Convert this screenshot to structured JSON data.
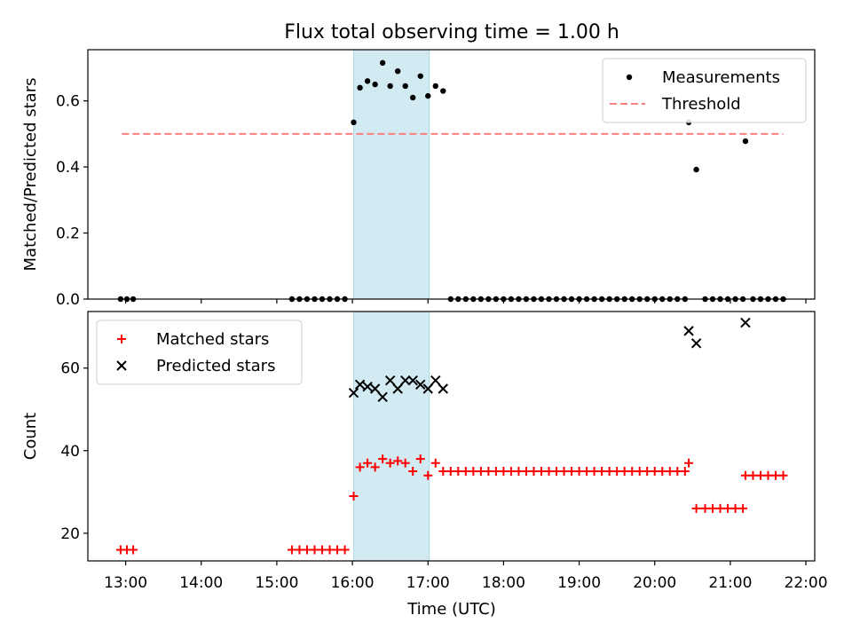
{
  "title": "Flux total observing time = 1.00 h",
  "xlabel": "Time (UTC)",
  "colors": {
    "matched": "#ff0000",
    "predicted": "#000000",
    "threshold": "#ff7f7f",
    "measurement": "#000000",
    "highlight": "#add8e6"
  },
  "chart_data": [
    {
      "type": "scatter",
      "ylabel": "Matched/Predicted stars",
      "xlim": [
        "12:30",
        "22:07"
      ],
      "ylim": [
        0,
        0.755
      ],
      "yticks": [
        0.0,
        0.2,
        0.4,
        0.6
      ],
      "ytick_labels": [
        "0.0",
        "0.2",
        "0.4",
        "0.6"
      ],
      "xticks": [
        "13:00",
        "14:00",
        "15:00",
        "16:00",
        "17:00",
        "18:00",
        "19:00",
        "20:00",
        "21:00",
        "22:00"
      ],
      "highlight_span": [
        "16:01",
        "17:01"
      ],
      "legend_position": "upper right",
      "grid": false,
      "threshold": {
        "name": "Threshold",
        "y": 0.5,
        "x": [
          "12:57",
          "21:42"
        ]
      },
      "series": [
        {
          "name": "Measurements",
          "points": [
            [
              "12:56",
              0
            ],
            [
              "13:01",
              0
            ],
            [
              "13:06",
              0
            ],
            [
              "15:12",
              0
            ],
            [
              "15:18",
              0
            ],
            [
              "15:24",
              0
            ],
            [
              "15:30",
              0
            ],
            [
              "15:36",
              0
            ],
            [
              "15:42",
              0
            ],
            [
              "15:48",
              0
            ],
            [
              "15:54",
              0
            ],
            [
              "16:01",
              0.535
            ],
            [
              "16:06",
              0.64
            ],
            [
              "16:12",
              0.66
            ],
            [
              "16:18",
              0.65
            ],
            [
              "16:24",
              0.715
            ],
            [
              "16:30",
              0.645
            ],
            [
              "16:36",
              0.69
            ],
            [
              "16:42",
              0.645
            ],
            [
              "16:48",
              0.61
            ],
            [
              "16:54",
              0.675
            ],
            [
              "17:00",
              0.615
            ],
            [
              "17:06",
              0.645
            ],
            [
              "17:12",
              0.63
            ],
            [
              "17:18",
              0
            ],
            [
              "17:24",
              0
            ],
            [
              "17:30",
              0
            ],
            [
              "17:36",
              0
            ],
            [
              "17:42",
              0
            ],
            [
              "17:48",
              0
            ],
            [
              "17:54",
              0
            ],
            [
              "18:00",
              0
            ],
            [
              "18:06",
              0
            ],
            [
              "18:12",
              0
            ],
            [
              "18:18",
              0
            ],
            [
              "18:24",
              0
            ],
            [
              "18:30",
              0
            ],
            [
              "18:36",
              0
            ],
            [
              "18:42",
              0
            ],
            [
              "18:48",
              0
            ],
            [
              "18:54",
              0
            ],
            [
              "19:00",
              0
            ],
            [
              "19:06",
              0
            ],
            [
              "19:12",
              0
            ],
            [
              "19:18",
              0
            ],
            [
              "19:24",
              0
            ],
            [
              "19:30",
              0
            ],
            [
              "19:36",
              0
            ],
            [
              "19:42",
              0
            ],
            [
              "19:48",
              0
            ],
            [
              "19:54",
              0
            ],
            [
              "20:00",
              0
            ],
            [
              "20:06",
              0
            ],
            [
              "20:12",
              0
            ],
            [
              "20:18",
              0
            ],
            [
              "20:24",
              0
            ],
            [
              "20:27",
              0.535
            ],
            [
              "20:33",
              0.392
            ],
            [
              "20:40",
              0
            ],
            [
              "20:46",
              0
            ],
            [
              "20:52",
              0
            ],
            [
              "20:58",
              0
            ],
            [
              "21:04",
              0
            ],
            [
              "21:10",
              0
            ],
            [
              "21:12",
              0.478
            ],
            [
              "21:18",
              0
            ],
            [
              "21:24",
              0
            ],
            [
              "21:30",
              0
            ],
            [
              "21:36",
              0
            ],
            [
              "21:42",
              0
            ]
          ]
        }
      ]
    },
    {
      "type": "scatter",
      "ylabel": "Count",
      "xlim": [
        "12:30",
        "22:07"
      ],
      "ylim": [
        13.3,
        73.7
      ],
      "yticks": [
        20,
        40,
        60
      ],
      "ytick_labels": [
        "20",
        "40",
        "60"
      ],
      "xticks": [
        "13:00",
        "14:00",
        "15:00",
        "16:00",
        "17:00",
        "18:00",
        "19:00",
        "20:00",
        "21:00",
        "22:00"
      ],
      "xtick_labels": [
        "13:00",
        "14:00",
        "15:00",
        "16:00",
        "17:00",
        "18:00",
        "19:00",
        "20:00",
        "21:00",
        "22:00"
      ],
      "highlight_span": [
        "16:01",
        "17:01"
      ],
      "legend_position": "upper left",
      "grid": false,
      "series": [
        {
          "name": "Matched stars",
          "marker": "plus",
          "points": [
            [
              "12:56",
              16
            ],
            [
              "13:01",
              16
            ],
            [
              "13:06",
              16
            ],
            [
              "15:12",
              16
            ],
            [
              "15:18",
              16
            ],
            [
              "15:24",
              16
            ],
            [
              "15:30",
              16
            ],
            [
              "15:36",
              16
            ],
            [
              "15:42",
              16
            ],
            [
              "15:48",
              16
            ],
            [
              "15:54",
              16
            ],
            [
              "16:01",
              29
            ],
            [
              "16:06",
              36
            ],
            [
              "16:12",
              37
            ],
            [
              "16:18",
              36
            ],
            [
              "16:24",
              38
            ],
            [
              "16:30",
              37
            ],
            [
              "16:36",
              37.5
            ],
            [
              "16:42",
              37
            ],
            [
              "16:48",
              35
            ],
            [
              "16:54",
              38
            ],
            [
              "17:00",
              34
            ],
            [
              "17:06",
              37
            ],
            [
              "17:12",
              35
            ],
            [
              "17:18",
              35
            ],
            [
              "17:24",
              35
            ],
            [
              "17:30",
              35
            ],
            [
              "17:36",
              35
            ],
            [
              "17:42",
              35
            ],
            [
              "17:48",
              35
            ],
            [
              "17:54",
              35
            ],
            [
              "18:00",
              35
            ],
            [
              "18:06",
              35
            ],
            [
              "18:12",
              35
            ],
            [
              "18:18",
              35
            ],
            [
              "18:24",
              35
            ],
            [
              "18:30",
              35
            ],
            [
              "18:36",
              35
            ],
            [
              "18:42",
              35
            ],
            [
              "18:48",
              35
            ],
            [
              "18:54",
              35
            ],
            [
              "19:00",
              35
            ],
            [
              "19:06",
              35
            ],
            [
              "19:12",
              35
            ],
            [
              "19:18",
              35
            ],
            [
              "19:24",
              35
            ],
            [
              "19:30",
              35
            ],
            [
              "19:36",
              35
            ],
            [
              "19:42",
              35
            ],
            [
              "19:48",
              35
            ],
            [
              "19:54",
              35
            ],
            [
              "20:00",
              35
            ],
            [
              "20:06",
              35
            ],
            [
              "20:12",
              35
            ],
            [
              "20:18",
              35
            ],
            [
              "20:24",
              35
            ],
            [
              "20:27",
              37
            ],
            [
              "20:33",
              26
            ],
            [
              "20:40",
              26
            ],
            [
              "20:46",
              26
            ],
            [
              "20:52",
              26
            ],
            [
              "20:58",
              26
            ],
            [
              "21:04",
              26
            ],
            [
              "21:10",
              26
            ],
            [
              "21:12",
              34
            ],
            [
              "21:18",
              34
            ],
            [
              "21:24",
              34
            ],
            [
              "21:30",
              34
            ],
            [
              "21:36",
              34
            ],
            [
              "21:42",
              34
            ]
          ]
        },
        {
          "name": "Predicted stars",
          "marker": "x",
          "points": [
            [
              "16:01",
              54
            ],
            [
              "16:06",
              56
            ],
            [
              "16:12",
              55.5
            ],
            [
              "16:18",
              55
            ],
            [
              "16:24",
              53
            ],
            [
              "16:30",
              57
            ],
            [
              "16:36",
              55
            ],
            [
              "16:42",
              57
            ],
            [
              "16:48",
              57
            ],
            [
              "16:54",
              56
            ],
            [
              "17:00",
              55
            ],
            [
              "17:06",
              57
            ],
            [
              "17:12",
              55
            ],
            [
              "20:27",
              69
            ],
            [
              "20:33",
              66
            ],
            [
              "21:12",
              71
            ]
          ]
        }
      ]
    }
  ]
}
